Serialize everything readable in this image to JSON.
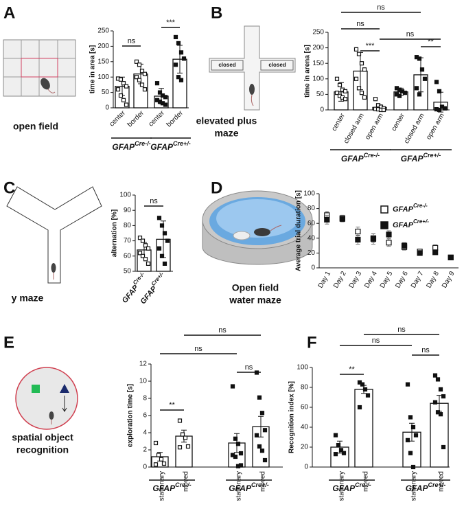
{
  "chart_data": [
    {
      "type": "bar",
      "panel": "A",
      "caption": [
        "open field"
      ],
      "ylabel": "time in area [s]",
      "ylim": [
        0,
        250
      ],
      "yticks": [
        0,
        50,
        100,
        150,
        200,
        250
      ],
      "categories": [
        "center",
        "border",
        "center",
        "border"
      ],
      "values": [
        70,
        110,
        38,
        158
      ],
      "errors": [
        30,
        32,
        25,
        45
      ],
      "points": [
        [
          95,
          92,
          80,
          70,
          60,
          40,
          25,
          10
        ],
        [
          150,
          140,
          120,
          110,
          100,
          90,
          75,
          60
        ],
        [
          80,
          50,
          40,
          35,
          25,
          20,
          15,
          10
        ],
        [
          230,
          210,
          180,
          160,
          140,
          100,
          90
        ]
      ],
      "markers": [
        "open",
        "open",
        "filled",
        "filled"
      ],
      "groups": [
        {
          "label": "GFAP",
          "sup": "Cre-/-"
        },
        {
          "label": "GFAP",
          "sup": "Cre+/-"
        }
      ],
      "brackets": [
        "ns",
        "***"
      ]
    },
    {
      "type": "bar",
      "panel": "B",
      "caption": [
        "elevated plus",
        "maze"
      ],
      "illustration_labels": [
        "closed",
        "closed"
      ],
      "ylabel": "time in arena [s]",
      "ylim": [
        0,
        250
      ],
      "yticks": [
        0,
        50,
        100,
        150,
        200,
        250
      ],
      "categories": [
        "center",
        "closed arm",
        "open arm",
        "center",
        "closed arm",
        "open arm"
      ],
      "values": [
        58,
        125,
        8,
        58,
        113,
        25
      ],
      "errors": [
        30,
        60,
        8,
        12,
        55,
        32
      ],
      "points": [
        [
          100,
          80,
          65,
          60,
          55,
          45,
          40,
          35
        ],
        [
          195,
          180,
          150,
          130,
          100,
          70,
          55,
          40
        ],
        [
          35,
          15,
          10,
          5,
          3,
          2,
          0,
          0
        ],
        [
          70,
          65,
          60,
          55,
          50,
          45
        ],
        [
          170,
          165,
          130,
          100,
          70,
          50
        ],
        [
          90,
          60,
          10,
          5,
          2,
          0
        ]
      ],
      "markers": [
        "open",
        "open",
        "open",
        "filled",
        "filled",
        "filled"
      ],
      "groups": [
        {
          "label": "GFAP",
          "sup": "Cre-/-"
        },
        {
          "label": "GFAP",
          "sup": "Cre+/-"
        }
      ],
      "brackets": [
        "ns",
        "ns",
        "ns",
        "***",
        "**"
      ]
    },
    {
      "type": "bar",
      "panel": "C",
      "caption": [
        "y maze"
      ],
      "ylabel": "alternation [%]",
      "ylim": [
        50,
        100
      ],
      "yticks": [
        50,
        60,
        70,
        80,
        90,
        100
      ],
      "categories": [
        "GFAP",
        "GFAP"
      ],
      "category_sups": [
        "Cre-/-",
        "Cre+/-"
      ],
      "values": [
        64,
        71
      ],
      "errors": [
        5,
        12
      ],
      "points": [
        [
          72,
          70,
          67,
          65,
          62,
          60,
          58,
          55
        ],
        [
          85,
          80,
          75,
          70,
          65,
          60,
          55
        ]
      ],
      "markers": [
        "open",
        "filled"
      ],
      "brackets": [
        "ns"
      ]
    },
    {
      "type": "scatter",
      "panel": "D",
      "caption": [
        "Open field",
        "water maze"
      ],
      "ylabel": "Average trial duration [s]",
      "ylim": [
        0,
        100
      ],
      "yticks": [
        0,
        20,
        40,
        60,
        80,
        100
      ],
      "categories": [
        "Day 1",
        "Day 2",
        "Day 3",
        "Day 4",
        "Day 5",
        "Day 6",
        "Day 7",
        "Day 8",
        "Day 9"
      ],
      "legend": "upper right",
      "series": [
        {
          "name": "GFAP",
          "sup": "Cre-/-",
          "marker": "open",
          "values": [
            71,
            67,
            49,
            40,
            34,
            28,
            22,
            27,
            14
          ],
          "errors": [
            5,
            4,
            6,
            6,
            5,
            4,
            3,
            4,
            2
          ]
        },
        {
          "name": "GFAP",
          "sup": "Cre+/-",
          "marker": "filled",
          "values": [
            65,
            66,
            38,
            39,
            45,
            30,
            20,
            21,
            14
          ],
          "errors": [
            6,
            4,
            6,
            7,
            5,
            4,
            3,
            3,
            2
          ]
        }
      ]
    },
    {
      "type": "bar",
      "panel": "E",
      "caption": [
        "spatial object",
        "recognition"
      ],
      "ylabel": "exploration time [s]",
      "ylim": [
        0,
        12
      ],
      "yticks": [
        0,
        2,
        4,
        6,
        8,
        10,
        12
      ],
      "categories": [
        "stationary",
        "moved",
        "stationary",
        "moved"
      ],
      "values": [
        1.2,
        3.6,
        2.8,
        4.7
      ],
      "errors": [
        0.5,
        0.7,
        1.1,
        1.2
      ],
      "points": [
        [
          2.8,
          1.4,
          0.9,
          0.4,
          0.3
        ],
        [
          5.4,
          3.8,
          3.4,
          2.4,
          2.3
        ],
        [
          9.4,
          3.3,
          2.7,
          1.6,
          1.4,
          1.2,
          0.1,
          0.2
        ],
        [
          11,
          8.1,
          6.3,
          4.3,
          3.7,
          2.4,
          1.9,
          0.8
        ]
      ],
      "markers": [
        "open",
        "open",
        "filled",
        "filled"
      ],
      "groups": [
        {
          "label": "GFAP",
          "sup": "Cre-/-"
        },
        {
          "label": "GFAP",
          "sup": "Cre+/-"
        }
      ],
      "brackets": [
        "ns",
        "ns",
        "ns",
        "**"
      ]
    },
    {
      "type": "bar",
      "panel": "F",
      "caption": [],
      "ylabel": "Recognition index [%]",
      "ylim": [
        0,
        100
      ],
      "yticks": [
        0,
        20,
        40,
        60,
        80,
        100
      ],
      "categories": [
        "stationary",
        "moved",
        "stationary",
        "moved"
      ],
      "values": [
        20,
        78,
        35,
        64
      ],
      "errors": [
        6,
        4,
        9,
        8
      ],
      "points": [
        [
          32,
          22,
          17,
          14,
          13
        ],
        [
          85,
          83,
          78,
          72,
          60
        ],
        [
          83,
          50,
          40,
          32,
          27,
          14,
          0
        ],
        [
          92,
          88,
          78,
          71,
          65,
          55,
          53,
          20
        ]
      ],
      "markers": [
        "filled",
        "filled",
        "filled",
        "filled"
      ],
      "groups": [
        {
          "label": "GFAP",
          "sup": "Cre-/-"
        },
        {
          "label": "GFAP",
          "sup": "Cre+/-"
        }
      ],
      "brackets": [
        "ns",
        "ns",
        "ns",
        "**"
      ]
    }
  ]
}
